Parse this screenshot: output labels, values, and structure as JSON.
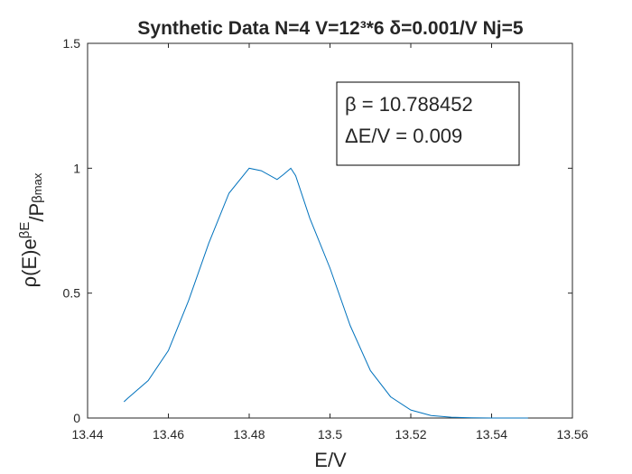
{
  "chart_data": {
    "type": "line",
    "title": "Synthetic Data N=4 V=12³*6 δ=0.001/V Nj=5",
    "xlabel": "E/V",
    "ylabel_parts": [
      "ρ(E)e",
      "βE",
      "/P",
      "β",
      "max"
    ],
    "annotation": [
      "β = 10.788452",
      "ΔE/V = 0.009"
    ],
    "x": [
      13.449,
      13.45,
      13.455,
      13.46,
      13.465,
      13.47,
      13.475,
      13.48,
      13.483,
      13.4869,
      13.4885,
      13.4903,
      13.4915,
      13.495,
      13.5,
      13.505,
      13.51,
      13.515,
      13.52,
      13.525,
      13.53,
      13.535,
      13.54,
      13.549
    ],
    "series": [
      {
        "name": "ρ",
        "color": "#0072bd",
        "values": [
          0.065,
          0.08,
          0.15,
          0.27,
          0.47,
          0.7,
          0.9,
          1.0,
          0.99,
          0.955,
          0.975,
          1.0,
          0.97,
          0.8,
          0.6,
          0.37,
          0.19,
          0.085,
          0.032,
          0.01,
          0.003,
          0.001,
          0.0,
          0.0
        ]
      }
    ],
    "xlim": [
      13.44,
      13.56
    ],
    "xticks": [
      13.44,
      13.46,
      13.48,
      13.5,
      13.52,
      13.54,
      13.56
    ],
    "ylim": [
      0,
      1.5
    ],
    "yticks": [
      0,
      0.5,
      1,
      1.5
    ]
  }
}
